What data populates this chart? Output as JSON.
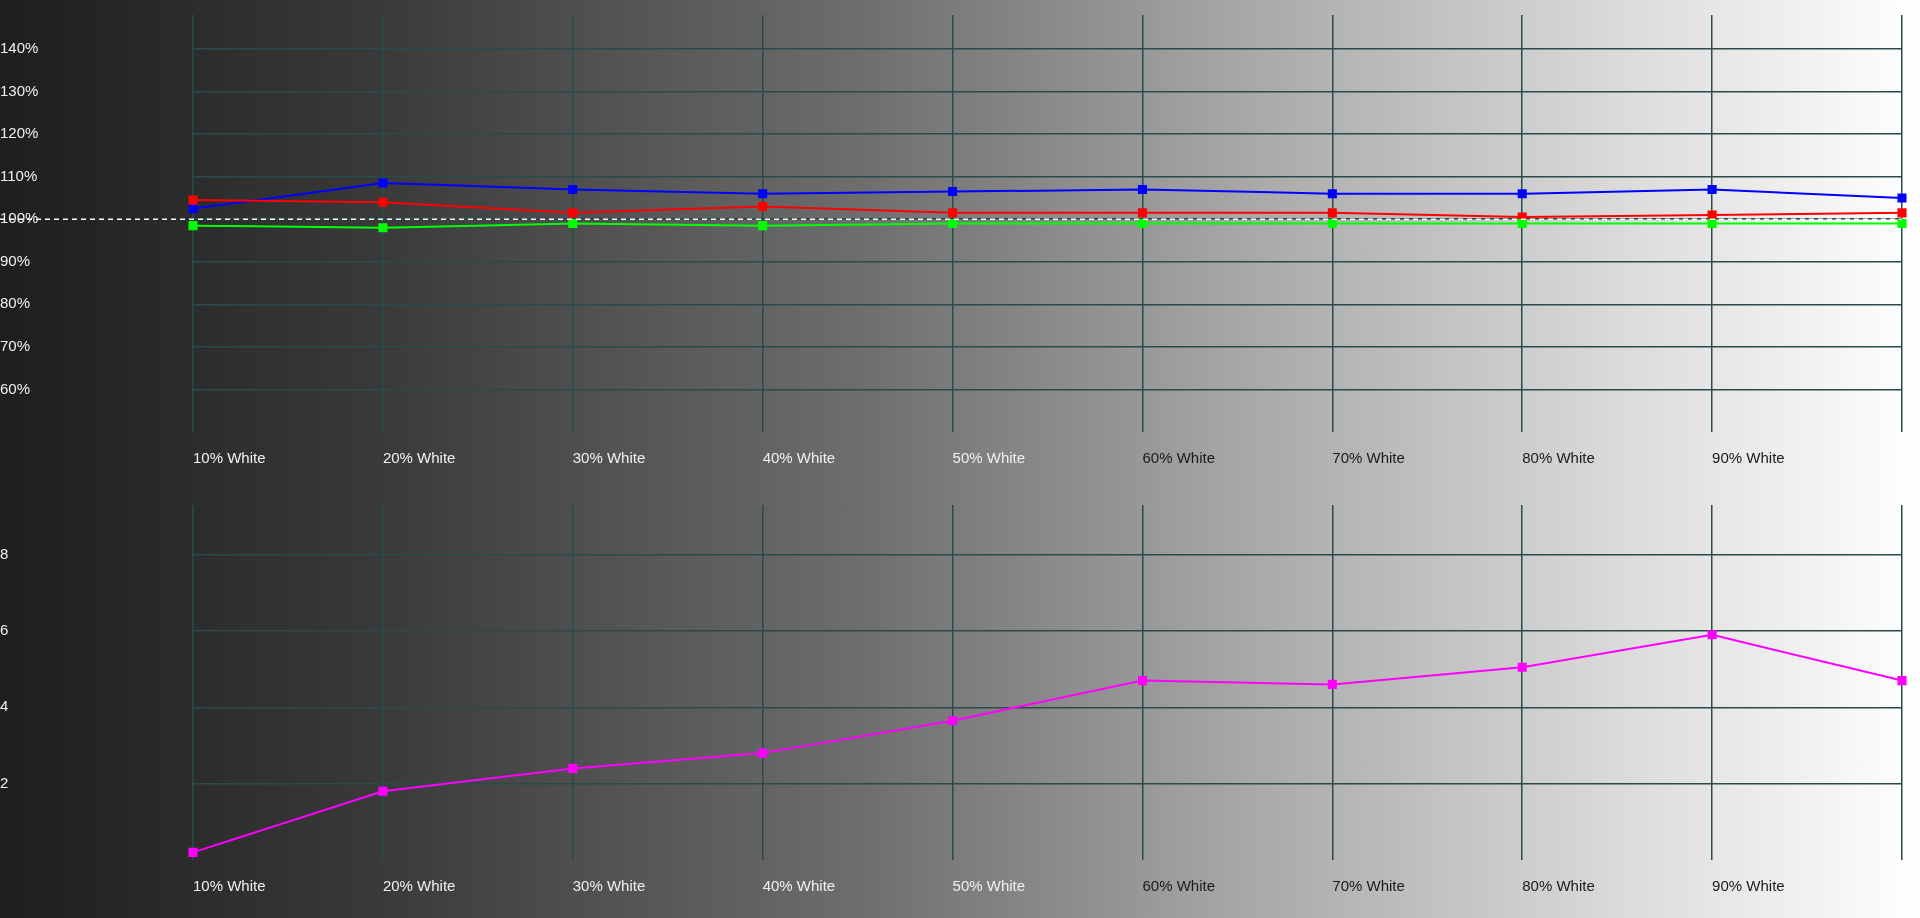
{
  "chart_data": [
    {
      "type": "line",
      "categories": [
        "10% White",
        "20% White",
        "30% White",
        "40% White",
        "50% White",
        "60% White",
        "70% White",
        "80% White",
        "90% White",
        null
      ],
      "series": [
        {
          "color": "#00ff00",
          "values": [
            98.5,
            98,
            99,
            98.5,
            99,
            99,
            99,
            99,
            99,
            99
          ]
        },
        {
          "color": "#ff0000",
          "values": [
            104.5,
            104,
            101.5,
            103,
            101.5,
            101.5,
            101.5,
            100.5,
            101,
            101.5
          ]
        },
        {
          "color": "#0000ff",
          "values": [
            102.5,
            108.5,
            107,
            106,
            106.5,
            107,
            106,
            106,
            107,
            105
          ]
        }
      ],
      "ylim": [
        50,
        148
      ],
      "yticks": [
        {
          "value": 60,
          "label": "60%"
        },
        {
          "value": 70,
          "label": "70%"
        },
        {
          "value": 80,
          "label": "80%"
        },
        {
          "value": 90,
          "label": "90%"
        },
        {
          "value": 100,
          "label": "100%"
        },
        {
          "value": 110,
          "label": "110%"
        },
        {
          "value": 120,
          "label": "120%"
        },
        {
          "value": 130,
          "label": "130%"
        },
        {
          "value": 140,
          "label": "140%"
        }
      ],
      "ref_lines": [
        {
          "axis": "y",
          "value": 100,
          "color": "#ffffff",
          "line_style": "dashed"
        }
      ],
      "marker": "square",
      "grid": true,
      "legend": false
    },
    {
      "type": "line",
      "categories": [
        "10% White",
        "20% White",
        "30% White",
        "40% White",
        "50% White",
        "60% White",
        "70% White",
        "80% White",
        "90% White",
        null
      ],
      "series": [
        {
          "color": "#ff00ff",
          "values": [
            0.2,
            1.8,
            2.4,
            2.8,
            3.65,
            4.7,
            4.6,
            5.05,
            5.9,
            4.7
          ]
        }
      ],
      "ylim": [
        0,
        9.3
      ],
      "yticks": [
        2,
        4,
        6,
        8
      ],
      "marker": "square",
      "grid": true,
      "legend": false
    }
  ]
}
